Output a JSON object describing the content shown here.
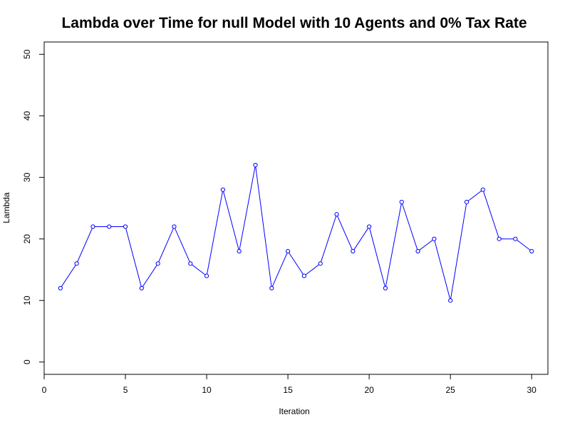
{
  "chart_data": {
    "type": "line",
    "title": "Lambda over Time for null Model with 10 Agents and 0% Tax Rate",
    "xlabel": "Iteration",
    "ylabel": "Lambda",
    "xlim": [
      0,
      31
    ],
    "ylim": [
      -2,
      52
    ],
    "x_ticks": [
      "0",
      "5",
      "10",
      "15",
      "20",
      "25",
      "30"
    ],
    "y_ticks": [
      "0",
      "10",
      "20",
      "30",
      "40",
      "50"
    ],
    "grid": false,
    "legend": "none",
    "series": [
      {
        "color": "#0000ff",
        "marker": "open-circle",
        "x": [
          1,
          2,
          3,
          4,
          5,
          6,
          7,
          8,
          9,
          10,
          11,
          12,
          13,
          14,
          15,
          16,
          17,
          18,
          19,
          20,
          21,
          22,
          23,
          24,
          25,
          26,
          27,
          28,
          29,
          30
        ],
        "values": [
          12,
          16,
          22,
          22,
          22,
          12,
          16,
          22,
          16,
          14,
          28,
          18,
          32,
          12,
          18,
          14,
          16,
          24,
          18,
          22,
          12,
          26,
          18,
          20,
          10,
          26,
          28,
          20,
          20,
          18
        ]
      }
    ]
  }
}
